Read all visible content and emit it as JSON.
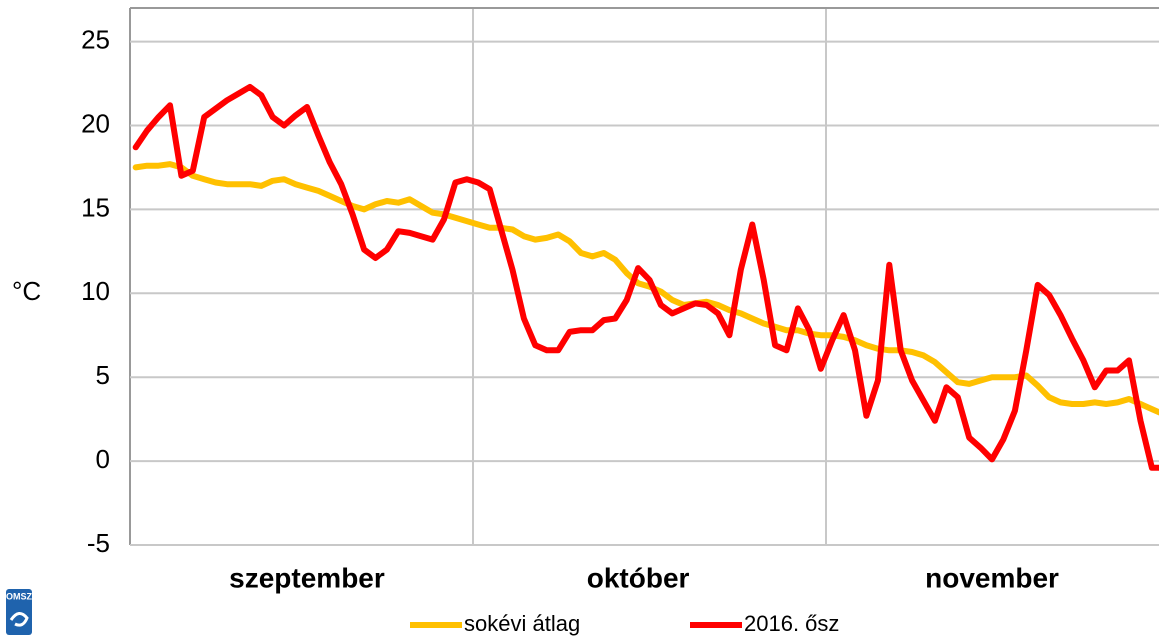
{
  "chart_data": {
    "type": "line",
    "ylabel": "°C",
    "logo": "OMSZ",
    "categories": [
      null,
      null,
      null,
      null,
      null,
      null,
      null,
      null,
      null,
      null,
      null,
      null,
      null,
      null,
      null,
      "szeptember",
      null,
      null,
      null,
      null,
      null,
      null,
      null,
      null,
      null,
      null,
      null,
      null,
      null,
      null,
      null,
      null,
      null,
      null,
      null,
      null,
      null,
      null,
      null,
      null,
      null,
      null,
      null,
      null,
      "október",
      null,
      null,
      null,
      null,
      null,
      null,
      null,
      null,
      null,
      null,
      null,
      null,
      null,
      null,
      null,
      null,
      null,
      null,
      null,
      null,
      null,
      null,
      null,
      null,
      null,
      null,
      null,
      null,
      null,
      null,
      "november",
      null,
      null,
      null,
      null,
      null,
      null,
      null,
      null,
      null,
      null,
      null,
      null,
      null,
      null,
      null
    ],
    "series": [
      {
        "name": "sokévi átlag",
        "color": "#ffc000",
        "values": [
          17.5,
          17.6,
          17.6,
          17.7,
          17.5,
          17.0,
          16.8,
          16.6,
          16.5,
          16.5,
          16.5,
          16.4,
          16.7,
          16.8,
          16.5,
          16.3,
          16.1,
          15.8,
          15.5,
          15.2,
          15.0,
          15.3,
          15.5,
          15.4,
          15.6,
          15.2,
          14.8,
          14.7,
          14.5,
          14.3,
          14.1,
          13.9,
          13.9,
          13.8,
          13.4,
          13.2,
          13.3,
          13.5,
          13.1,
          12.4,
          12.2,
          12.4,
          12.0,
          11.2,
          10.6,
          10.4,
          10.1,
          9.6,
          9.3,
          9.4,
          9.5,
          9.3,
          9.0,
          8.8,
          8.5,
          8.2,
          8.0,
          7.8,
          7.8,
          7.6,
          7.5,
          7.5,
          7.4,
          7.2,
          6.9,
          6.7,
          6.6,
          6.6,
          6.5,
          6.3,
          5.9,
          5.3,
          4.7,
          4.6,
          4.8,
          5.0,
          5.0,
          5.0,
          5.1,
          4.5,
          3.8,
          3.5,
          3.4,
          3.4,
          3.5,
          3.4,
          3.5,
          3.7,
          3.4,
          3.1,
          2.8
        ]
      },
      {
        "name": "2016. ősz",
        "color": "#ff0000",
        "values": [
          18.7,
          19.7,
          20.5,
          21.2,
          17.0,
          17.3,
          20.5,
          21.0,
          21.5,
          21.9,
          22.3,
          21.8,
          20.5,
          20.0,
          20.6,
          21.1,
          19.4,
          17.8,
          16.5,
          14.7,
          12.6,
          12.1,
          12.6,
          13.7,
          13.6,
          13.4,
          13.2,
          14.4,
          16.6,
          16.8,
          16.6,
          16.2,
          13.8,
          11.4,
          8.5,
          6.9,
          6.6,
          6.6,
          7.7,
          7.8,
          7.8,
          8.4,
          8.5,
          9.6,
          11.5,
          10.8,
          9.3,
          8.8,
          9.1,
          9.4,
          9.3,
          8.8,
          7.5,
          11.4,
          14.1,
          10.8,
          6.9,
          6.6,
          9.1,
          7.8,
          5.5,
          7.2,
          8.7,
          6.6,
          2.7,
          4.8,
          11.7,
          6.6,
          4.8,
          3.6,
          2.4,
          4.4,
          3.8,
          1.4,
          0.8,
          0.1,
          1.3,
          3.0,
          6.6,
          10.5,
          9.9,
          8.7,
          7.3,
          6.0,
          4.4,
          5.4,
          5.4,
          6.0,
          2.4,
          -0.4,
          -0.4
        ]
      }
    ],
    "ylim": [
      -5,
      27
    ],
    "yticks": [
      -5,
      0,
      5,
      10,
      15,
      20,
      25
    ],
    "grid": true
  }
}
